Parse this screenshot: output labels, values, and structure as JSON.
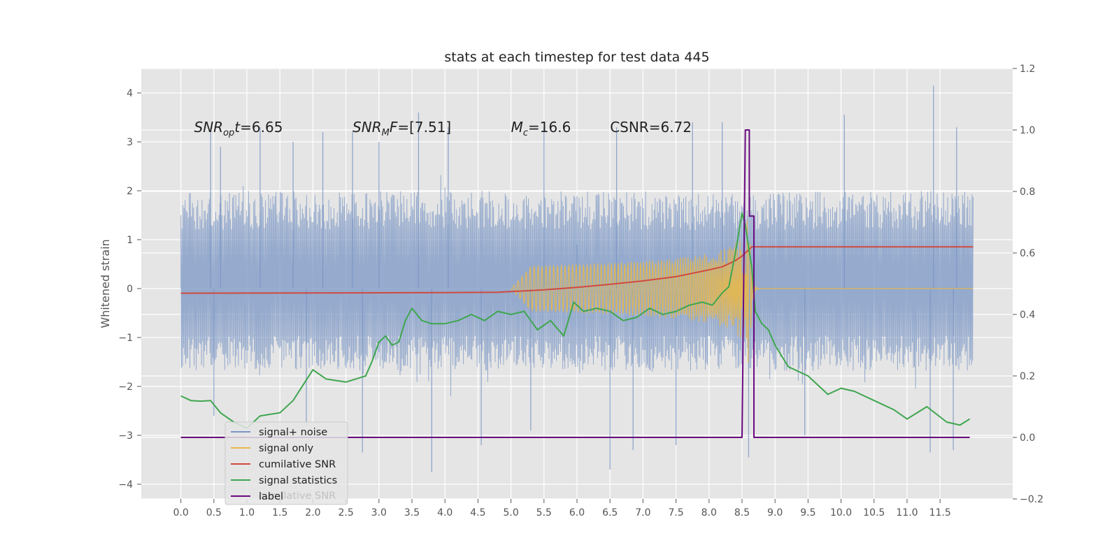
{
  "chart_data": {
    "type": "line",
    "title": "stats at each timestep for test data 445",
    "ylabel": "Whitened strain",
    "ylabel_right": "",
    "xlim": [
      -0.6,
      12.6
    ],
    "ylim": [
      -4.3,
      4.5
    ],
    "ylim_right": [
      -0.2,
      1.2
    ],
    "xticks": [
      0.0,
      0.5,
      1.0,
      1.5,
      2.0,
      2.5,
      3.0,
      3.5,
      4.0,
      4.5,
      5.0,
      5.5,
      6.0,
      6.5,
      7.0,
      7.5,
      8.0,
      8.5,
      9.0,
      9.5,
      10.0,
      10.5,
      11.0,
      11.5
    ],
    "xtick_labels": [
      "0.0",
      "0.5",
      "1.0",
      "1.5",
      "2.0",
      "2.5",
      "3.0",
      "3.5",
      "4.0",
      "4.5",
      "5.0",
      "5.5",
      "6.0",
      "6.5",
      "7.0",
      "7.5",
      "8.0",
      "8.5",
      "9.0",
      "9.5",
      "10.0",
      "10.5",
      "11.0",
      "11.5"
    ],
    "yticks": [
      -4,
      -3,
      -2,
      -1,
      0,
      1,
      2,
      3,
      4
    ],
    "ytick_labels": [
      "−4",
      "−3",
      "−2",
      "−1",
      "0",
      "1",
      "2",
      "3",
      "4"
    ],
    "yticks_right": [
      -0.2,
      0.0,
      0.2,
      0.4,
      0.6,
      0.8,
      1.0,
      1.2
    ],
    "ytick_labels_right": [
      "−0.2",
      "0.0",
      "0.2",
      "0.4",
      "0.6",
      "0.8",
      "1.0",
      "1.2"
    ],
    "grid": true,
    "legend_position": "lower-left",
    "colors": {
      "noise": "#7a96c4",
      "signal": "#e8b84a",
      "snr": "#d04a3f",
      "stats": "#3fa64f",
      "label": "#6a0a80",
      "plot_bg": "#e5e5e5",
      "grid": "#ffffff"
    },
    "annotations": [
      {
        "text": "SNR_opt=6.65",
        "x": 0.2,
        "y": 3.3
      },
      {
        "text": "SNR_MF=[7.51]",
        "x": 2.6,
        "y": 3.3
      },
      {
        "text": "M_c=16.6",
        "x": 5.0,
        "y": 3.3
      },
      {
        "text": "CSNR=6.72",
        "x": 6.5,
        "y": 3.3
      }
    ],
    "series": [
      {
        "name": "signal+ noise",
        "axis": "left",
        "style": "noise-band",
        "x_range": [
          0.0,
          12.0
        ],
        "typical_range": [
          -1.6,
          2.0
        ],
        "peaks": [
          {
            "x": 0.45,
            "y": 3.2
          },
          {
            "x": 0.6,
            "y": 2.9
          },
          {
            "x": 1.2,
            "y": 3.3
          },
          {
            "x": 1.7,
            "y": 3.0
          },
          {
            "x": 2.15,
            "y": 3.2
          },
          {
            "x": 2.6,
            "y": 3.2
          },
          {
            "x": 3.0,
            "y": 3.0
          },
          {
            "x": 3.6,
            "y": 3.6
          },
          {
            "x": 4.05,
            "y": 3.3
          },
          {
            "x": 5.5,
            "y": 3.3
          },
          {
            "x": 6.6,
            "y": 3.3
          },
          {
            "x": 7.75,
            "y": 3.4
          },
          {
            "x": 8.2,
            "y": 3.4
          },
          {
            "x": 10.05,
            "y": 3.55
          },
          {
            "x": 11.4,
            "y": 4.15
          },
          {
            "x": 11.75,
            "y": 3.3
          },
          {
            "x": 6.0,
            "y": 0.9
          }
        ],
        "troughs": [
          {
            "x": 0.5,
            "y": -2.6
          },
          {
            "x": 1.9,
            "y": -2.8
          },
          {
            "x": 2.75,
            "y": -3.35
          },
          {
            "x": 3.8,
            "y": -3.75
          },
          {
            "x": 4.55,
            "y": -3.2
          },
          {
            "x": 5.3,
            "y": -2.9
          },
          {
            "x": 6.5,
            "y": -3.7
          },
          {
            "x": 6.85,
            "y": -3.3
          },
          {
            "x": 7.5,
            "y": -3.2
          },
          {
            "x": 8.6,
            "y": -3.45
          },
          {
            "x": 11.35,
            "y": -3.35
          },
          {
            "x": 11.7,
            "y": -3.3
          },
          {
            "x": 9.45,
            "y": -3.0
          }
        ]
      },
      {
        "name": "signal only",
        "axis": "left",
        "style": "chirp",
        "x_range": [
          5.0,
          12.0
        ],
        "merger_x": 8.62,
        "peak_amplitude": 1.7
      },
      {
        "name": "cumilative SNR",
        "axis": "right",
        "x": [
          0.0,
          4.0,
          4.8,
          5.5,
          6.0,
          6.5,
          7.0,
          7.5,
          8.0,
          8.2,
          8.4,
          8.5,
          8.55,
          8.6,
          8.65,
          9.0,
          10.0,
          11.0,
          12.0
        ],
        "y": [
          0.469,
          0.471,
          0.472,
          0.48,
          0.488,
          0.498,
          0.509,
          0.523,
          0.545,
          0.555,
          0.575,
          0.59,
          0.6,
          0.61,
          0.62,
          0.62,
          0.62,
          0.62,
          0.62
        ]
      },
      {
        "name": "signal statistics",
        "axis": "right",
        "x": [
          0.0,
          0.15,
          0.3,
          0.45,
          0.6,
          0.8,
          1.0,
          1.2,
          1.5,
          1.7,
          2.0,
          2.2,
          2.5,
          2.8,
          2.9,
          3.0,
          3.1,
          3.2,
          3.3,
          3.4,
          3.5,
          3.65,
          3.8,
          4.0,
          4.2,
          4.4,
          4.6,
          4.8,
          5.0,
          5.2,
          5.4,
          5.6,
          5.8,
          5.95,
          6.1,
          6.3,
          6.5,
          6.7,
          6.9,
          7.1,
          7.3,
          7.5,
          7.7,
          7.9,
          8.05,
          8.2,
          8.3,
          8.4,
          8.5,
          8.55,
          8.6,
          8.65,
          8.7,
          8.8,
          8.9,
          9.0,
          9.2,
          9.5,
          9.8,
          10.0,
          10.2,
          10.5,
          10.8,
          11.0,
          11.3,
          11.6,
          11.8,
          11.95
        ],
        "y": [
          0.135,
          0.12,
          0.118,
          0.12,
          0.08,
          0.05,
          0.03,
          0.07,
          0.08,
          0.12,
          0.22,
          0.19,
          0.18,
          0.2,
          0.25,
          0.31,
          0.33,
          0.3,
          0.31,
          0.38,
          0.42,
          0.38,
          0.37,
          0.37,
          0.38,
          0.4,
          0.38,
          0.41,
          0.4,
          0.41,
          0.35,
          0.38,
          0.33,
          0.44,
          0.41,
          0.42,
          0.41,
          0.38,
          0.39,
          0.42,
          0.4,
          0.41,
          0.43,
          0.44,
          0.43,
          0.47,
          0.49,
          0.6,
          0.73,
          0.69,
          0.62,
          0.55,
          0.41,
          0.37,
          0.35,
          0.3,
          0.23,
          0.2,
          0.14,
          0.16,
          0.15,
          0.12,
          0.09,
          0.06,
          0.1,
          0.05,
          0.04,
          0.06
        ]
      },
      {
        "name": "label",
        "axis": "right",
        "x": [
          0.0,
          8.5,
          8.55,
          8.61,
          8.61,
          8.68,
          8.68,
          11.95
        ],
        "y": [
          0.0,
          0.0,
          1.0,
          1.0,
          0.72,
          0.72,
          0.0,
          0.0
        ]
      }
    ],
    "legend_entries": [
      "signal+ noise",
      "signal only",
      "cumilative SNR",
      "signal statistics",
      "label"
    ],
    "legend_ghost_text": "cumilative SNR"
  }
}
